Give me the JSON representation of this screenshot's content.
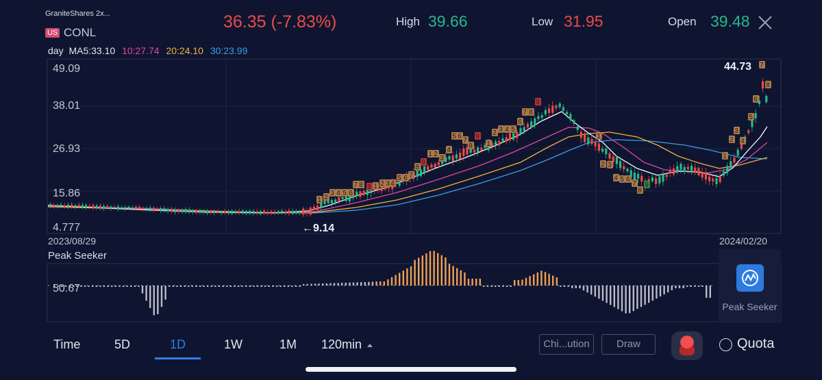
{
  "header": {
    "stock_name": "GraniteShares 2x...",
    "market_badge": "US",
    "ticker": "CONL",
    "price": "36.35",
    "change": "(-7.83%)",
    "high_label": "High",
    "high_value": "39.66",
    "low_label": "Low",
    "low_value": "31.95",
    "open_label": "Open",
    "open_value": "39.48"
  },
  "ma": {
    "period": "day",
    "ma5": "MA5:33.10",
    "ma10": "10:27.74",
    "ma20": "20:24.10",
    "ma30": "30:23.99"
  },
  "colors": {
    "up": "#26b98a",
    "down": "#ea4b47",
    "ma5": "#ffffff",
    "ma10": "#e3469d",
    "ma20": "#f0b23a",
    "ma30": "#3a9ee8",
    "accent": "#2f7ee8",
    "peak_bar": "#f0a052",
    "neutral_bar": "#b8bcc8"
  },
  "chart": {
    "y_ticks": [
      "49.09",
      "38.01",
      "26.93",
      "15.86",
      "4.777"
    ],
    "start_date": "2023/08/29",
    "end_date": "2024/02/20",
    "high_marker": "44.73",
    "low_marker": "←9.14"
  },
  "indicator": {
    "title": "Peak Seeker",
    "value": "50.67",
    "panel_label": "Peak Seeker"
  },
  "bottom_bar": {
    "periods": [
      "Time",
      "5D",
      "1D",
      "1W",
      "1M",
      "120min"
    ],
    "selected": "1D",
    "chip_label": "Chi...ution",
    "draw_label": "Draw",
    "quota_label": "Quota"
  },
  "icons": {
    "close": "close-icon",
    "dropdown": "triangle-up-icon",
    "peak_seeker": "peak-seeker-icon",
    "record": "record-icon",
    "quota": "quota-icon"
  }
}
